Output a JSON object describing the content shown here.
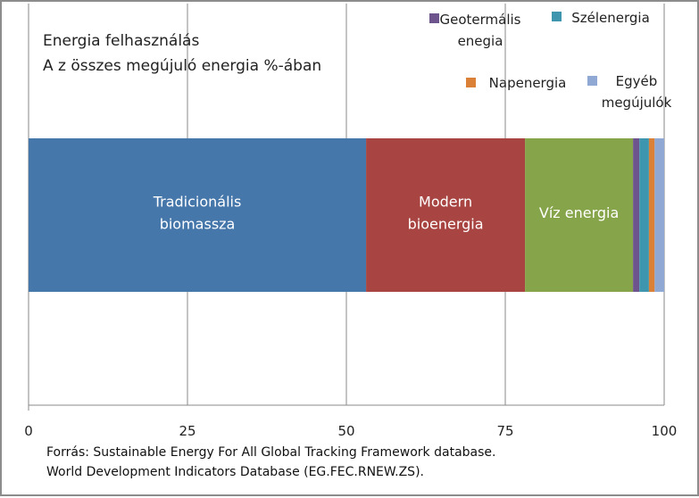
{
  "chart_data": {
    "type": "bar",
    "orientation": "horizontal",
    "stacked": true,
    "title_lines": [
      "Energia felhasználás",
      "A z összes megújuló energia  %-ában"
    ],
    "xlim": [
      0,
      100
    ],
    "xticks": [
      "0",
      "25",
      "50",
      "75",
      "100"
    ],
    "grid": "vertical",
    "legend_position": "top-right",
    "series": [
      {
        "name": "Tradicionális biomassza",
        "label_lines": [
          "Tradicionális",
          "biomassza"
        ],
        "value": 53.1,
        "color": "#4677ab"
      },
      {
        "name": "Modern bioenergia",
        "label_lines": [
          "Modern",
          "bioenergia"
        ],
        "value": 25.0,
        "color": "#a84542"
      },
      {
        "name": "Víz energia",
        "label_lines": [
          "Víz energia"
        ],
        "value": 17.0,
        "color": "#86a44a"
      },
      {
        "name": "Geotermális enegia",
        "legend_lines": [
          "Geotermális",
          "enegia"
        ],
        "value": 1.0,
        "color": "#6e548d"
      },
      {
        "name": "Szélenergia",
        "legend_lines": [
          "Szélenergia"
        ],
        "value": 1.5,
        "color": "#3d96ae"
      },
      {
        "name": "Napenergia",
        "legend_lines": [
          "Napenergia"
        ],
        "value": 0.9,
        "color": "#da8137"
      },
      {
        "name": "Egyéb megújulók",
        "legend_lines": [
          "Egyéb",
          "megújulók"
        ],
        "value": 1.5,
        "color": "#8fa8d4"
      }
    ],
    "source_lines": [
      "Forrás: Sustainable Energy For All Global Tracking Framework database.",
      "World Development Indicators Database (EG.FEC.RNEW.ZS)."
    ]
  }
}
